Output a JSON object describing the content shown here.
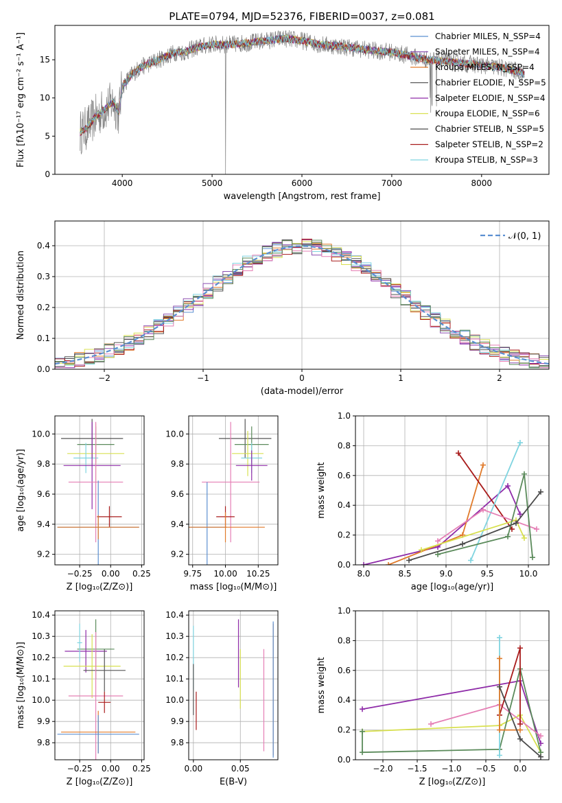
{
  "figure": {
    "title": "PLATE=0794, MJD=52376, FIBERID=0037, z=0.081"
  },
  "colors": {
    "Chabrier MILES": "#5b8fd1",
    "Salpeter MILES": "#8a4fb0",
    "Kroupa MILES": "#e07a2a",
    "Chabrier ELODIE": "#555555",
    "Salpeter ELODIE": "#8e2ba8",
    "Kroupa ELODIE": "#d8e050",
    "Chabrier STELIB": "#4a4a4a",
    "Salpeter STELIB": "#a81b1b",
    "Kroupa STELIB": "#7fd4e0",
    "pink": "#e57fb5",
    "green": "#5a8a5a",
    "data": "#808080",
    "grid": "#b0b0b0",
    "normal": "#5b8fd1"
  },
  "chart_data": [
    {
      "id": "spectrum",
      "type": "line",
      "xlabel": "wavelength [Angstrom, rest frame]",
      "ylabel": "Flux [fλ10⁻¹⁷ erg cm⁻² s⁻¹ A⁻¹]",
      "xlim": [
        3250,
        8750
      ],
      "ylim": [
        0,
        19.5
      ],
      "xticks": [
        4000,
        5000,
        6000,
        7000,
        8000
      ],
      "yticks": [
        0,
        5,
        10,
        15
      ],
      "grid": false,
      "legend_position": "right",
      "continuum": {
        "x": [
          3530,
          3600,
          3700,
          3800,
          3900,
          3960,
          4000,
          4100,
          4200,
          4300,
          4400,
          4500,
          4600,
          4700,
          4800,
          4900,
          5000,
          5200,
          5400,
          5600,
          5800,
          6000,
          6200,
          6400,
          6600,
          6800,
          7000,
          7200,
          7400,
          7600,
          7800,
          8000,
          8200,
          8400,
          8500
        ],
        "y": [
          5.5,
          6.0,
          7.5,
          8.5,
          9.5,
          8.0,
          11.5,
          13.0,
          14.0,
          14.5,
          15.0,
          15.5,
          16.0,
          16.0,
          16.5,
          16.8,
          17.0,
          17.0,
          17.2,
          17.5,
          17.8,
          17.5,
          17.0,
          16.8,
          16.5,
          16.2,
          16.0,
          15.5,
          15.0,
          14.8,
          14.5,
          14.3,
          14.0,
          13.5,
          13.0
        ]
      },
      "series": [
        {
          "name": "Chabrier MILES, N_SSP=4",
          "color": "#5b8fd1"
        },
        {
          "name": "Salpeter MILES, N_SSP=4",
          "color": "#8a4fb0"
        },
        {
          "name": "Kroupa MILES, N_SSP=4",
          "color": "#e07a2a"
        },
        {
          "name": "Chabrier ELODIE, N_SSP=5",
          "color": "#555555"
        },
        {
          "name": "Salpeter ELODIE, N_SSP=4",
          "color": "#8e2ba8"
        },
        {
          "name": "Kroupa ELODIE, N_SSP=6",
          "color": "#d8e050"
        },
        {
          "name": "Chabrier STELIB, N_SSP=5",
          "color": "#4a4a4a"
        },
        {
          "name": "Salpeter STELIB, N_SSP=2",
          "color": "#a81b1b"
        },
        {
          "name": "Kroupa STELIB, N_SSP=3",
          "color": "#7fd4e0"
        }
      ]
    },
    {
      "id": "residuals",
      "type": "bar",
      "xlabel": "(data-model)/error",
      "ylabel": "Normed distribution",
      "xlim": [
        -2.5,
        2.5
      ],
      "ylim": [
        0,
        0.48
      ],
      "xticks": [
        -2,
        -1,
        0,
        1,
        2
      ],
      "yticks": [
        0.0,
        0.1,
        0.2,
        0.3,
        0.4
      ],
      "grid": true,
      "legend": "𝒩(0, 1)",
      "legend_position": "top-right"
    },
    {
      "id": "age_vs_Z",
      "type": "scatter",
      "xlabel": "Z [log₁₀(Z/Z⊙)]",
      "ylabel": "age  [log₁₀(age/yr)]",
      "xlim": [
        -0.45,
        0.27
      ],
      "ylim": [
        9.13,
        10.12
      ],
      "xticks": [
        -0.25,
        0.0,
        0.25
      ],
      "yticks": [
        9.2,
        9.4,
        9.6,
        9.8,
        10.0
      ],
      "grid": true,
      "points": [
        {
          "x": -0.15,
          "y": 9.97,
          "xerr": 0.25,
          "yerr": 0.13,
          "color": "#555555"
        },
        {
          "x": -0.12,
          "y": 9.93,
          "xerr": 0.15,
          "yerr": 0.12,
          "color": "#5a8a5a"
        },
        {
          "x": -0.12,
          "y": 9.87,
          "xerr": 0.23,
          "yerr": 0.2,
          "color": "#d8e050"
        },
        {
          "x": -0.2,
          "y": 9.84,
          "xerr": 0.1,
          "yerr": 0.1,
          "color": "#7fd4e0"
        },
        {
          "x": -0.15,
          "y": 9.79,
          "xerr": 0.23,
          "yerr": 0.29,
          "color": "#8e2ba8"
        },
        {
          "x": -0.12,
          "y": 9.68,
          "xerr": 0.22,
          "yerr": 0.4,
          "color": "#e57fb5"
        },
        {
          "x": -0.01,
          "y": 9.45,
          "xerr": 0.1,
          "yerr": 0.07,
          "color": "#a81b1b"
        },
        {
          "x": -0.1,
          "y": 9.38,
          "xerr": 0.33,
          "yerr": 0.31,
          "color": "#5b8fd1"
        },
        {
          "x": -0.1,
          "y": 9.38,
          "xerr": 0.33,
          "yerr": 0.08,
          "color": "#e07a2a"
        }
      ]
    },
    {
      "id": "age_vs_mass",
      "type": "scatter",
      "xlabel": "mass [log₁₀(M/M⊙)]",
      "ylabel": "",
      "xlim": [
        9.72,
        10.4
      ],
      "ylim": [
        9.13,
        10.12
      ],
      "xticks": [
        9.75,
        10.0,
        10.25
      ],
      "yticks": [
        9.2,
        9.4,
        9.6,
        9.8,
        10.0
      ],
      "grid": true,
      "points": [
        {
          "x": 10.15,
          "y": 9.97,
          "xerr": 0.2,
          "yerr": 0.13,
          "color": "#555555"
        },
        {
          "x": 10.2,
          "y": 9.93,
          "xerr": 0.13,
          "yerr": 0.12,
          "color": "#5a8a5a"
        },
        {
          "x": 10.17,
          "y": 9.87,
          "xerr": 0.12,
          "yerr": 0.15,
          "color": "#d8e050"
        },
        {
          "x": 10.2,
          "y": 9.84,
          "xerr": 0.08,
          "yerr": 0.1,
          "color": "#7fd4e0"
        },
        {
          "x": 10.2,
          "y": 9.79,
          "xerr": 0.12,
          "yerr": 0.1,
          "color": "#8e2ba8"
        },
        {
          "x": 10.04,
          "y": 9.68,
          "xerr": 0.22,
          "yerr": 0.4,
          "color": "#e57fb5"
        },
        {
          "x": 10.0,
          "y": 9.45,
          "xerr": 0.07,
          "yerr": 0.07,
          "color": "#a81b1b"
        },
        {
          "x": 9.86,
          "y": 9.38,
          "xerr": 0.15,
          "yerr": 0.3,
          "color": "#5b8fd1"
        },
        {
          "x": 10.0,
          "y": 9.38,
          "xerr": 0.3,
          "yerr": 0.1,
          "color": "#e07a2a"
        }
      ]
    },
    {
      "id": "weight_vs_age",
      "type": "line",
      "xlabel": "age  [log₁₀(age/yr)]",
      "ylabel": "mass weight",
      "xlim": [
        7.9,
        10.25
      ],
      "ylim": [
        0.0,
        1.0
      ],
      "xticks": [
        8.0,
        8.5,
        9.0,
        9.5,
        10.0
      ],
      "yticks": [
        0.0,
        0.2,
        0.4,
        0.6,
        0.8,
        1.0
      ],
      "grid": true,
      "series": [
        {
          "color": "#8e2ba8",
          "x": [
            8.0,
            8.9,
            9.75,
            9.9
          ],
          "y": [
            0.0,
            0.12,
            0.53,
            0.34
          ]
        },
        {
          "color": "#e07a2a",
          "x": [
            8.3,
            9.2,
            9.45
          ],
          "y": [
            0.0,
            0.2,
            0.67
          ]
        },
        {
          "color": "#a81b1b",
          "x": [
            9.15,
            9.8
          ],
          "y": [
            0.75,
            0.24
          ]
        },
        {
          "color": "#7fd4e0",
          "x": [
            9.3,
            9.9
          ],
          "y": [
            0.03,
            0.82
          ]
        },
        {
          "color": "#e57fb5",
          "x": [
            8.9,
            9.45,
            10.1
          ],
          "y": [
            0.16,
            0.37,
            0.24
          ]
        },
        {
          "color": "#d8e050",
          "x": [
            8.7,
            9.85,
            9.95
          ],
          "y": [
            0.1,
            0.3,
            0.18
          ]
        },
        {
          "color": "#5a8a5a",
          "x": [
            8.9,
            9.75,
            9.95,
            10.05
          ],
          "y": [
            0.07,
            0.19,
            0.61,
            0.05
          ]
        },
        {
          "color": "#4a4a4a",
          "x": [
            8.55,
            9.2,
            9.85,
            10.15
          ],
          "y": [
            0.03,
            0.14,
            0.28,
            0.49
          ]
        }
      ]
    },
    {
      "id": "mass_vs_Z",
      "type": "scatter",
      "xlabel": "Z [log₁₀(Z/Z⊙)]",
      "ylabel": "mass [log₁₀(M/M⊙)]",
      "xlim": [
        -0.45,
        0.27
      ],
      "ylim": [
        9.72,
        10.42
      ],
      "xticks": [
        -0.25,
        0.0,
        0.25
      ],
      "yticks": [
        9.8,
        9.9,
        10.0,
        10.1,
        10.2,
        10.3,
        10.4
      ],
      "grid": true,
      "points": [
        {
          "x": -0.12,
          "y": 10.24,
          "xerr": 0.15,
          "yerr": 0.14,
          "color": "#5a8a5a"
        },
        {
          "x": -0.2,
          "y": 10.23,
          "xerr": 0.17,
          "yerr": 0.1,
          "color": "#8e2ba8"
        },
        {
          "x": -0.25,
          "y": 10.27,
          "xerr": 0.02,
          "yerr": 0.09,
          "color": "#7fd4e0"
        },
        {
          "x": -0.15,
          "y": 10.16,
          "xerr": 0.23,
          "yerr": 0.15,
          "color": "#d8e050"
        },
        {
          "x": -0.05,
          "y": 10.14,
          "xerr": 0.17,
          "yerr": 0.1,
          "color": "#555555"
        },
        {
          "x": -0.12,
          "y": 10.02,
          "xerr": 0.22,
          "yerr": 0.3,
          "color": "#e57fb5"
        },
        {
          "x": -0.05,
          "y": 9.99,
          "xerr": 0.05,
          "yerr": 0.05,
          "color": "#a81b1b"
        },
        {
          "x": -0.1,
          "y": 9.85,
          "xerr": 0.3,
          "yerr": 0.1,
          "color": "#e07a2a"
        },
        {
          "x": -0.1,
          "y": 9.84,
          "xerr": 0.33,
          "yerr": 0.09,
          "color": "#5b8fd1"
        }
      ]
    },
    {
      "id": "mass_vs_EBV",
      "type": "scatter",
      "xlabel": "E(B-V)",
      "ylabel": "",
      "xlim": [
        -0.005,
        0.09
      ],
      "ylim": [
        9.72,
        10.42
      ],
      "xticks": [
        0.0,
        0.05
      ],
      "yticks": [
        9.8,
        9.9,
        10.0,
        10.1,
        10.2,
        10.3,
        10.4
      ],
      "grid": true,
      "points": [
        {
          "x": 0.0,
          "y": 10.2,
          "yerr": 0.15,
          "color": "#7fd4e0"
        },
        {
          "x": 0.0,
          "y": 10.05,
          "yerr": 0.12,
          "color": "#555555"
        },
        {
          "x": 0.003,
          "y": 9.95,
          "yerr": 0.09,
          "color": "#a81b1b"
        },
        {
          "x": 0.048,
          "y": 10.22,
          "yerr": 0.16,
          "color": "#8e2ba8"
        },
        {
          "x": 0.05,
          "y": 10.1,
          "yerr": 0.14,
          "color": "#d8e050"
        },
        {
          "x": 0.075,
          "y": 10.0,
          "yerr": 0.24,
          "color": "#e57fb5"
        },
        {
          "x": 0.085,
          "y": 10.05,
          "yerr": 0.31,
          "color": "#e07a2a"
        },
        {
          "x": 0.085,
          "y": 10.05,
          "yerr": 0.32,
          "color": "#5b8fd1"
        }
      ]
    },
    {
      "id": "weight_vs_Z",
      "type": "line",
      "xlabel": "Z [log₁₀(Z/Z⊙)]",
      "ylabel": "mass weight",
      "xlim": [
        -2.4,
        0.42
      ],
      "ylim": [
        0.0,
        1.0
      ],
      "xticks": [
        -2.0,
        -1.5,
        -1.0,
        -0.5,
        0.0
      ],
      "yticks": [
        0.0,
        0.2,
        0.4,
        0.6,
        0.8,
        1.0
      ],
      "grid": true,
      "series": [
        {
          "color": "#8e2ba8",
          "x": [
            -2.3,
            0.0,
            0.3
          ],
          "y": [
            0.34,
            0.53,
            0.11
          ]
        },
        {
          "color": "#d8e050",
          "x": [
            -2.3,
            -0.3,
            0.0,
            0.3
          ],
          "y": [
            0.19,
            0.23,
            0.3,
            0.05
          ]
        },
        {
          "color": "#5a8a5a",
          "x": [
            -2.3,
            -2.3,
            -0.3,
            0.0,
            0.3
          ],
          "y": [
            0.19,
            0.05,
            0.07,
            0.61,
            0.05
          ]
        },
        {
          "color": "#e57fb5",
          "x": [
            -1.3,
            -0.3,
            0.3
          ],
          "y": [
            0.24,
            0.37,
            0.16
          ]
        },
        {
          "color": "#a81b1b",
          "x": [
            -0.3,
            0.0,
            0.0
          ],
          "y": [
            0.3,
            0.75,
            0.24
          ]
        },
        {
          "color": "#7fd4e0",
          "x": [
            -0.3,
            -0.3
          ],
          "y": [
            0.03,
            0.82
          ]
        },
        {
          "color": "#e07a2a",
          "x": [
            -0.3,
            -0.3,
            0.0
          ],
          "y": [
            0.68,
            0.2,
            0.2
          ]
        },
        {
          "color": "#4a4a4a",
          "x": [
            -0.3,
            0.0,
            0.3
          ],
          "y": [
            0.49,
            0.14,
            0.02
          ]
        }
      ]
    }
  ]
}
